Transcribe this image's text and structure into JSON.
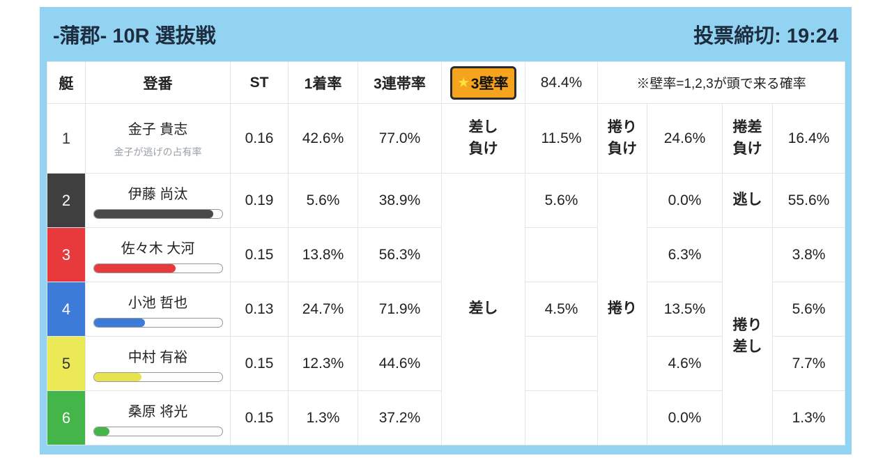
{
  "colors": {
    "frame": "#92d3f2",
    "header_text": "#1d2c3e",
    "badge_bg": "#f6a31e",
    "badge_border": "#2b2b2b",
    "star": "#ffe23c"
  },
  "header": {
    "title": "-蒲郡- 10R 選抜戦",
    "deadline": "投票締切: 19:24"
  },
  "table": {
    "columns": {
      "boat": "艇",
      "reg": "登番",
      "st": "ST",
      "win1": "1着率",
      "top3": "3連帯率",
      "wall_star": "★",
      "wall_label": "3壁率",
      "wall_value": "84.4%",
      "note": "※壁率=1,2,3が頭で来る確率"
    },
    "merged": {
      "sashi": "差し",
      "makuri": "捲り",
      "makuri_sashi": "捲り\n差し"
    },
    "rows": [
      {
        "boat": "1",
        "name": "金子 貴志",
        "sub": "金子が逃げの占有率",
        "boat_bg": "#ffffff",
        "boat_fg": "#333333",
        "st": "0.16",
        "win1": "42.6%",
        "top3": "77.0%",
        "c1_label": "差し\n負け",
        "c1": "11.5%",
        "c2_label": "捲り\n負け",
        "c2": "24.6%",
        "c3_label": "捲差\n負け",
        "c3": "16.4%"
      },
      {
        "boat": "2",
        "name": "伊藤 尚汰",
        "boat_bg": "#3f3f3f",
        "boat_fg": "#ffffff",
        "bar_color": "#4a4a4a",
        "bar_pct": 93,
        "st": "0.19",
        "win1": "5.6%",
        "top3": "38.9%",
        "c1": "5.6%",
        "c2": "0.0%",
        "c3_label": "逃し",
        "c3": "55.6%"
      },
      {
        "boat": "3",
        "name": "佐々木 大河",
        "boat_bg": "#e8393d",
        "boat_fg": "#ffffff",
        "bar_color": "#e8393d",
        "bar_pct": 64,
        "st": "0.15",
        "win1": "13.8%",
        "top3": "56.3%",
        "c1": "",
        "c2": "6.3%",
        "c3": "3.8%"
      },
      {
        "boat": "4",
        "name": "小池 哲也",
        "boat_bg": "#3d7bd9",
        "boat_fg": "#ffffff",
        "bar_color": "#3d7bd9",
        "bar_pct": 40,
        "st": "0.13",
        "win1": "24.7%",
        "top3": "71.9%",
        "c1": "4.5%",
        "c2": "13.5%",
        "c3": "5.6%"
      },
      {
        "boat": "5",
        "name": "中村 有裕",
        "boat_bg": "#ece957",
        "boat_fg": "#333333",
        "bar_color": "#e6e34e",
        "bar_pct": 37,
        "st": "0.15",
        "win1": "12.3%",
        "top3": "44.6%",
        "c1": "",
        "c2": "4.6%",
        "c3": "7.7%"
      },
      {
        "boat": "6",
        "name": "桑原 将光",
        "boat_bg": "#43b549",
        "boat_fg": "#ffffff",
        "bar_color": "#43b549",
        "bar_pct": 12,
        "st": "0.15",
        "win1": "1.3%",
        "top3": "37.2%",
        "c1": "",
        "c2": "0.0%",
        "c3": "1.3%"
      }
    ]
  }
}
